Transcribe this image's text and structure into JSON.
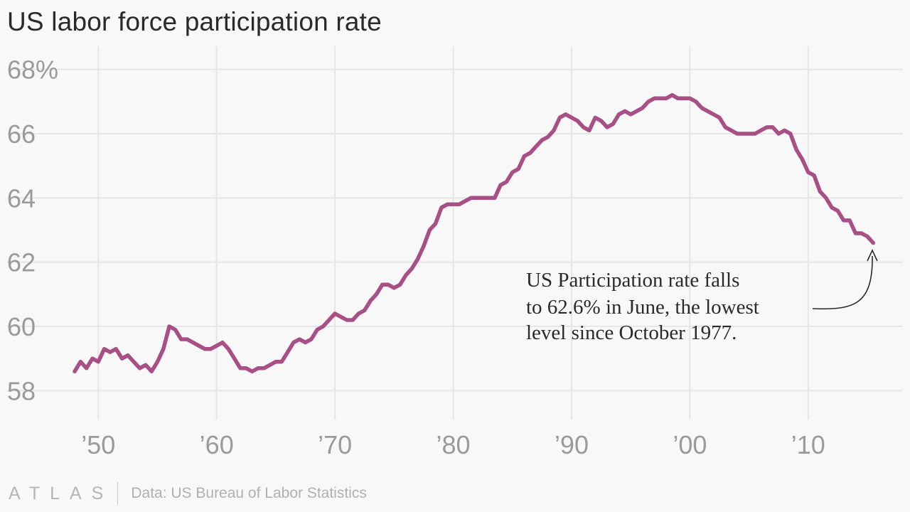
{
  "title": "US labor force participation rate",
  "footer": {
    "logo": "ATLAS",
    "source": "Data: US Bureau of Labor Statistics"
  },
  "colors": {
    "line": "#a84f86",
    "grid": "#e6e6e6",
    "tick": "#9a9a9a",
    "background": "#f8f8f8"
  },
  "chart_data": {
    "type": "line",
    "title": "US labor force participation rate",
    "xlabel": "",
    "ylabel": "",
    "xlim": [
      1948,
      2015.6
    ],
    "ylim": [
      57.5,
      68.5
    ],
    "yticks": [
      {
        "value": 68,
        "label": "68%"
      },
      {
        "value": 66,
        "label": "66"
      },
      {
        "value": 64,
        "label": "64"
      },
      {
        "value": 62,
        "label": "62"
      },
      {
        "value": 60,
        "label": "60"
      },
      {
        "value": 58,
        "label": "58"
      }
    ],
    "xticks": [
      {
        "value": 1950,
        "label": "’50"
      },
      {
        "value": 1960,
        "label": "’60"
      },
      {
        "value": 1970,
        "label": "’70"
      },
      {
        "value": 1980,
        "label": "’80"
      },
      {
        "value": 1990,
        "label": "’90"
      },
      {
        "value": 2000,
        "label": "’00"
      },
      {
        "value": 2010,
        "label": "’10"
      }
    ],
    "grid": true,
    "series": [
      {
        "x": [
          1948.0,
          1948.5,
          1949.0,
          1949.5,
          1950.0,
          1950.5,
          1951.0,
          1951.5,
          1952.0,
          1952.5,
          1953.0,
          1953.5,
          1954.0,
          1954.5,
          1955.0,
          1955.5,
          1956.0,
          1956.5,
          1957.0,
          1957.5,
          1958.0,
          1958.5,
          1959.0,
          1959.5,
          1960.0,
          1960.5,
          1961.0,
          1961.5,
          1962.0,
          1962.5,
          1963.0,
          1963.5,
          1964.0,
          1964.5,
          1965.0,
          1965.5,
          1966.0,
          1966.5,
          1967.0,
          1967.5,
          1968.0,
          1968.5,
          1969.0,
          1969.5,
          1970.0,
          1970.5,
          1971.0,
          1971.5,
          1972.0,
          1972.5,
          1973.0,
          1973.5,
          1974.0,
          1974.5,
          1975.0,
          1975.5,
          1976.0,
          1976.5,
          1977.0,
          1977.5,
          1978.0,
          1978.5,
          1979.0,
          1979.5,
          1980.0,
          1980.5,
          1981.0,
          1981.5,
          1982.0,
          1982.5,
          1983.0,
          1983.5,
          1984.0,
          1984.5,
          1985.0,
          1985.5,
          1986.0,
          1986.5,
          1987.0,
          1987.5,
          1988.0,
          1988.5,
          1989.0,
          1989.5,
          1990.0,
          1990.5,
          1991.0,
          1991.5,
          1992.0,
          1992.5,
          1993.0,
          1993.5,
          1994.0,
          1994.5,
          1995.0,
          1995.5,
          1996.0,
          1996.5,
          1997.0,
          1997.5,
          1998.0,
          1998.5,
          1999.0,
          1999.5,
          2000.0,
          2000.5,
          2001.0,
          2001.5,
          2002.0,
          2002.5,
          2003.0,
          2003.5,
          2004.0,
          2004.5,
          2005.0,
          2005.5,
          2006.0,
          2006.5,
          2007.0,
          2007.5,
          2008.0,
          2008.5,
          2009.0,
          2009.5,
          2010.0,
          2010.5,
          2011.0,
          2011.5,
          2012.0,
          2012.5,
          2013.0,
          2013.5,
          2014.0,
          2014.5,
          2015.0,
          2015.5
        ],
        "values": [
          58.6,
          58.9,
          58.7,
          59.0,
          58.9,
          59.3,
          59.2,
          59.3,
          59.0,
          59.1,
          58.9,
          58.7,
          58.8,
          58.6,
          58.9,
          59.3,
          60.0,
          59.9,
          59.6,
          59.6,
          59.5,
          59.4,
          59.3,
          59.3,
          59.4,
          59.5,
          59.3,
          59.0,
          58.7,
          58.7,
          58.6,
          58.7,
          58.7,
          58.8,
          58.9,
          58.9,
          59.2,
          59.5,
          59.6,
          59.5,
          59.6,
          59.9,
          60.0,
          60.2,
          60.4,
          60.3,
          60.2,
          60.2,
          60.4,
          60.5,
          60.8,
          61.0,
          61.3,
          61.3,
          61.2,
          61.3,
          61.6,
          61.8,
          62.1,
          62.5,
          63.0,
          63.2,
          63.7,
          63.8,
          63.8,
          63.8,
          63.9,
          64.0,
          64.0,
          64.0,
          64.0,
          64.0,
          64.4,
          64.5,
          64.8,
          64.9,
          65.3,
          65.4,
          65.6,
          65.8,
          65.9,
          66.1,
          66.5,
          66.6,
          66.5,
          66.4,
          66.2,
          66.1,
          66.5,
          66.4,
          66.2,
          66.3,
          66.6,
          66.7,
          66.6,
          66.7,
          66.8,
          67.0,
          67.1,
          67.1,
          67.1,
          67.2,
          67.1,
          67.1,
          67.1,
          67.0,
          66.8,
          66.7,
          66.6,
          66.5,
          66.2,
          66.1,
          66.0,
          66.0,
          66.0,
          66.0,
          66.1,
          66.2,
          66.2,
          66.0,
          66.1,
          66.0,
          65.5,
          65.2,
          64.8,
          64.7,
          64.2,
          64.0,
          63.7,
          63.6,
          63.3,
          63.3,
          62.9,
          62.9,
          62.8,
          62.6
        ]
      }
    ],
    "annotation": {
      "lines": [
        "US Participation rate falls",
        "to 62.6% in June, the lowest",
        "level since October 1977."
      ],
      "target": {
        "x": 2015.5,
        "y": 62.6
      }
    }
  }
}
